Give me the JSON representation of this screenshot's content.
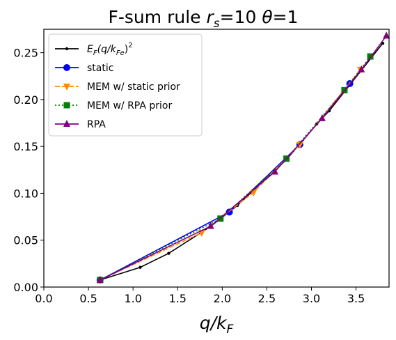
{
  "chart_data": {
    "type": "line",
    "title": {
      "prefix": "F-sum rule ",
      "rs_symbol": "r",
      "rs_sub": "s",
      "rs_value": "=10 ",
      "theta_symbol": "θ",
      "theta_value": "=1"
    },
    "xlabel": {
      "main": "q/k",
      "sub": "F"
    },
    "ylabel": "",
    "xlim": [
      0.0,
      3.87
    ],
    "ylim": [
      0.0,
      0.275
    ],
    "xticks": [
      "0.0",
      "0.5",
      "1.0",
      "1.5",
      "2.0",
      "2.5",
      "3.0",
      "3.5"
    ],
    "xtick_values": [
      0.0,
      0.5,
      1.0,
      1.5,
      2.0,
      2.5,
      3.0,
      3.5
    ],
    "yticks": [
      "0.00",
      "0.05",
      "0.10",
      "0.15",
      "0.20",
      "0.25"
    ],
    "ytick_values": [
      0.0,
      0.05,
      0.1,
      0.15,
      0.2,
      0.25
    ],
    "grid": false,
    "legend_placement": "top-left",
    "series": [
      {
        "name": "E_F(q/k_Fe)^2",
        "label_parts": {
          "e": "E",
          "e_sub": "F",
          "mid": "(q/k",
          "k_sub": "Fe",
          "end": ")",
          "sup": "2"
        },
        "color": "#000000",
        "linestyle": "solid",
        "marker": "dot",
        "x": [
          0.63,
          1.08,
          1.4,
          1.86,
          2.17,
          2.72,
          3.06,
          3.2,
          3.8
        ],
        "y": [
          0.0075,
          0.021,
          0.036,
          0.064,
          0.087,
          0.136,
          0.174,
          0.188,
          0.26
        ]
      },
      {
        "name": "static",
        "color": "#0000ff",
        "linestyle": "solid",
        "marker": "circle",
        "x": [
          0.63,
          2.08,
          2.87,
          3.43
        ],
        "y": [
          0.0075,
          0.08,
          0.152,
          0.217
        ]
      },
      {
        "name": "MEM w/ static prior",
        "color": "#ff8c00",
        "linestyle": "dashed",
        "marker": "triangle-down",
        "x": [
          0.63,
          1.77,
          2.35,
          2.87,
          3.55
        ],
        "y": [
          0.0075,
          0.058,
          0.101,
          0.152,
          0.232
        ]
      },
      {
        "name": "MEM w/ RPA prior",
        "color": "#007f00",
        "linestyle": "dotted",
        "marker": "square",
        "x": [
          0.63,
          1.98,
          2.72,
          3.37,
          3.66
        ],
        "y": [
          0.0075,
          0.073,
          0.137,
          0.21,
          0.246
        ]
      },
      {
        "name": "RPA",
        "color": "#800080",
        "linestyle": "solid",
        "marker": "triangle-up",
        "x": [
          0.63,
          1.87,
          2.59,
          3.12,
          3.56,
          3.84
        ],
        "y": [
          0.0075,
          0.065,
          0.123,
          0.18,
          0.232,
          0.268
        ]
      }
    ]
  }
}
